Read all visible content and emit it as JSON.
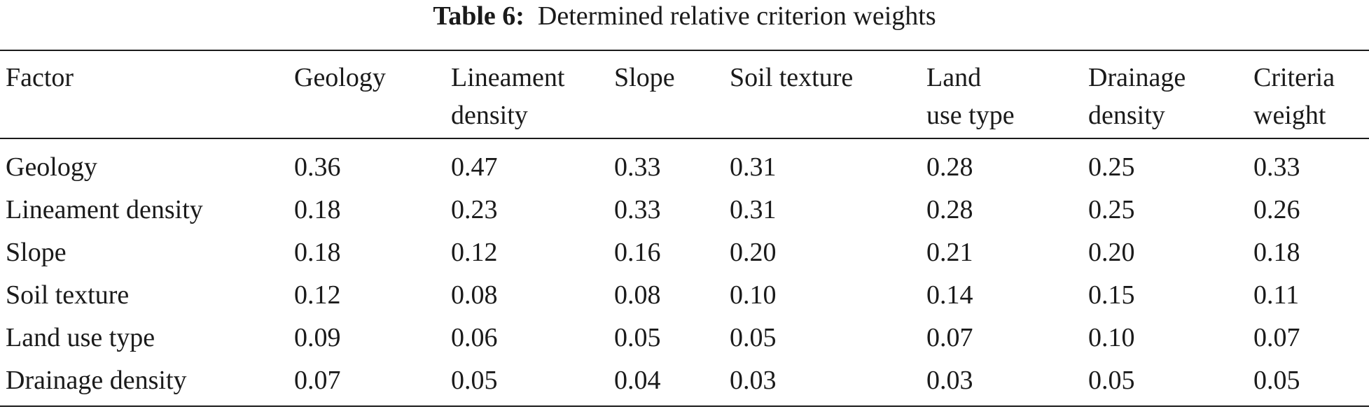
{
  "caption": {
    "label": "Table 6:",
    "title": "Determined relative criterion weights"
  },
  "table": {
    "columns": [
      [
        "Factor"
      ],
      [
        "Geology"
      ],
      [
        "Lineament",
        "density"
      ],
      [
        "Slope"
      ],
      [
        "Soil texture"
      ],
      [
        "Land",
        "use type"
      ],
      [
        "Drainage",
        "density"
      ],
      [
        "Criteria",
        "weight"
      ]
    ],
    "rows": [
      [
        "Geology",
        "0.36",
        "0.47",
        "0.33",
        "0.31",
        "0.28",
        "0.25",
        "0.33"
      ],
      [
        "Lineament density",
        "0.18",
        "0.23",
        "0.33",
        "0.31",
        "0.28",
        "0.25",
        "0.26"
      ],
      [
        "Slope",
        "0.18",
        "0.12",
        "0.16",
        "0.20",
        "0.21",
        "0.20",
        "0.18"
      ],
      [
        "Soil texture",
        "0.12",
        "0.08",
        "0.08",
        "0.10",
        "0.14",
        "0.15",
        "0.11"
      ],
      [
        "Land use type",
        "0.09",
        "0.06",
        "0.05",
        "0.05",
        "0.07",
        "0.10",
        "0.07"
      ],
      [
        "Drainage density",
        "0.07",
        "0.05",
        "0.04",
        "0.03",
        "0.03",
        "0.05",
        "0.05"
      ]
    ]
  }
}
